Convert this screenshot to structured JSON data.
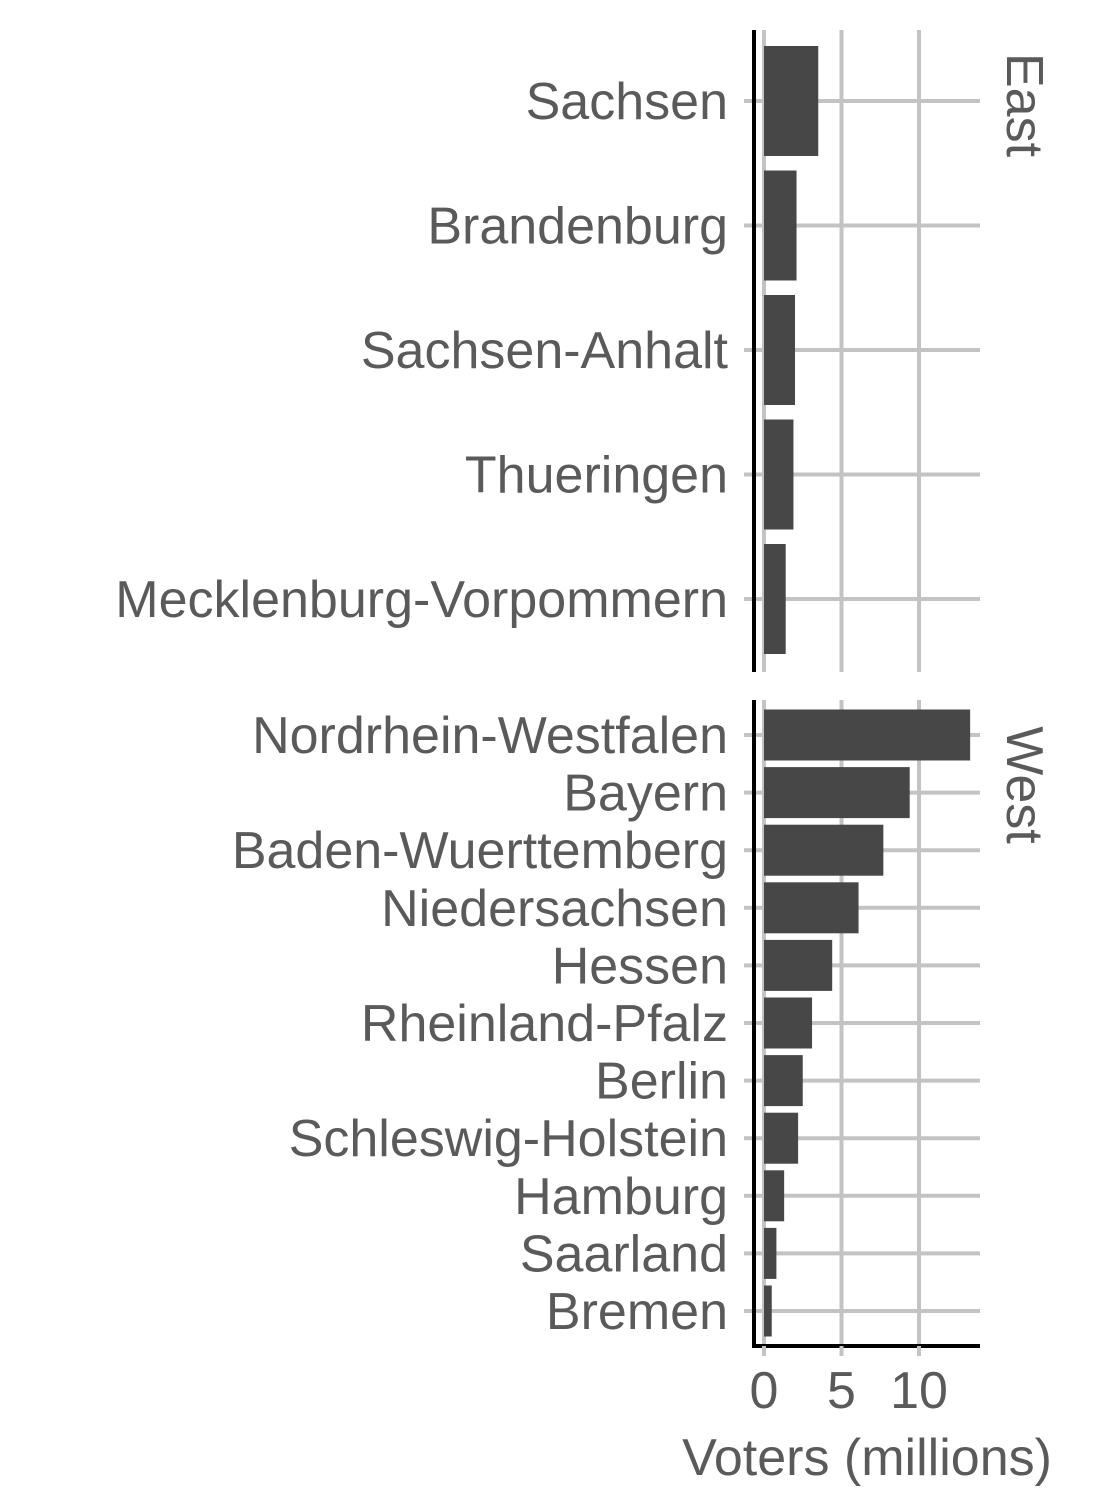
{
  "chart_data": {
    "type": "bar",
    "orientation": "horizontal",
    "xlabel": "Voters (millions)",
    "ylabel": "",
    "xlim": [
      0,
      14
    ],
    "x_ticks": [
      0,
      5,
      10
    ],
    "grid": true,
    "bar_color": "#474747",
    "panels": [
      {
        "label": "East",
        "categories": [
          "Sachsen",
          "Brandenburg",
          "Sachsen-Anhalt",
          "Thueringen",
          "Mecklenburg-Vorpommern"
        ],
        "values": [
          3.5,
          2.1,
          2.0,
          1.9,
          1.4
        ]
      },
      {
        "label": "West",
        "categories": [
          "Nordrhein-Westfalen",
          "Bayern",
          "Baden-Wuerttemberg",
          "Niedersachsen",
          "Hessen",
          "Rheinland-Pfalz",
          "Berlin",
          "Schleswig-Holstein",
          "Hamburg",
          "Saarland",
          "Bremen"
        ],
        "values": [
          13.3,
          9.4,
          7.7,
          6.1,
          4.4,
          3.1,
          2.5,
          2.2,
          1.3,
          0.8,
          0.5
        ]
      }
    ]
  }
}
